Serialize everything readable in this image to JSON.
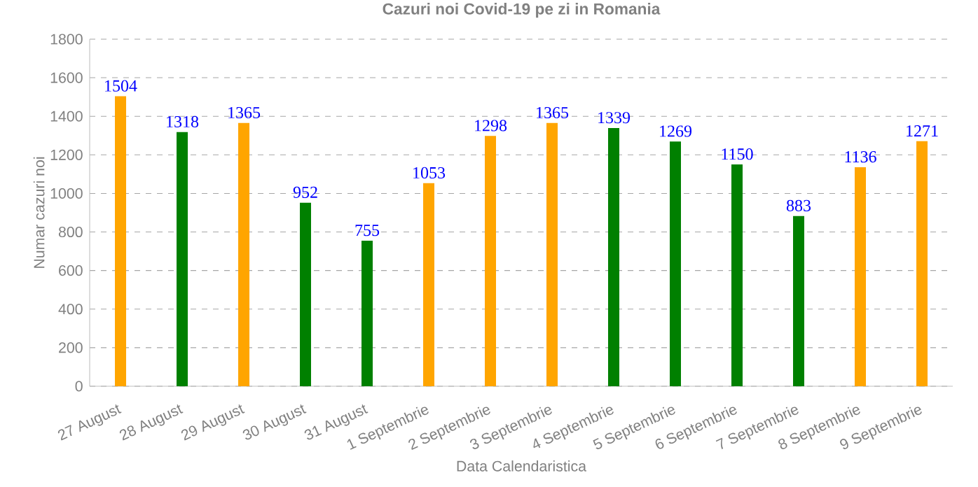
{
  "chart_data": {
    "type": "bar",
    "title": "Cazuri noi Covid-19 pe zi in Romania",
    "xlabel": "Data Calendaristica",
    "ylabel": "Numar cazuri noi",
    "categories": [
      "27 August",
      "28 August",
      "29 August",
      "30 August",
      "31 August",
      "1 Septembrie",
      "2 Septembrie",
      "3 Septembrie",
      "4 Septembrie",
      "5 Septembrie",
      "6 Septembrie",
      "7 Septembrie",
      "8 Septembrie",
      "9 Septembrie"
    ],
    "values": [
      1504,
      1318,
      1365,
      952,
      755,
      1053,
      1298,
      1365,
      1339,
      1269,
      1150,
      883,
      1136,
      1271
    ],
    "colors": [
      "#ffa500",
      "#008000",
      "#ffa500",
      "#008000",
      "#008000",
      "#ffa500",
      "#ffa500",
      "#ffa500",
      "#008000",
      "#008000",
      "#008000",
      "#008000",
      "#ffa500",
      "#ffa500"
    ],
    "ylim": [
      0,
      1800
    ],
    "yticks": [
      0,
      200,
      400,
      600,
      800,
      1000,
      1200,
      1400,
      1600,
      1800
    ],
    "grid": "y",
    "data_labels": true
  }
}
